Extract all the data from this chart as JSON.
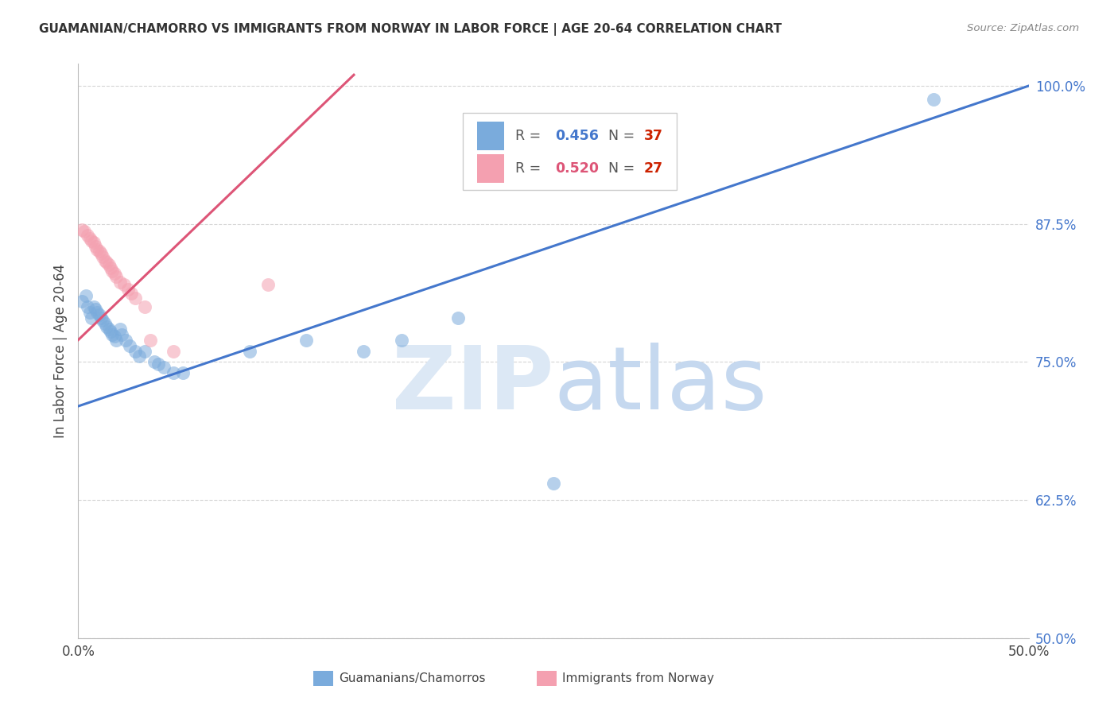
{
  "title": "GUAMANIAN/CHAMORRO VS IMMIGRANTS FROM NORWAY IN LABOR FORCE | AGE 20-64 CORRELATION CHART",
  "source": "Source: ZipAtlas.com",
  "ylabel": "In Labor Force | Age 20-64",
  "xlim": [
    0.0,
    0.5
  ],
  "ylim": [
    0.5,
    1.02
  ],
  "xtick_positions": [
    0.0,
    0.1,
    0.2,
    0.3,
    0.4,
    0.5
  ],
  "xticklabels": [
    "0.0%",
    "",
    "",
    "",
    "",
    "50.0%"
  ],
  "ytick_positions": [
    0.5,
    0.625,
    0.75,
    0.875,
    1.0
  ],
  "yticklabels": [
    "50.0%",
    "62.5%",
    "75.0%",
    "87.5%",
    "100.0%"
  ],
  "blue_R": "0.456",
  "blue_N": "37",
  "pink_R": "0.520",
  "pink_N": "27",
  "blue_dot_color": "#7aabdc",
  "pink_dot_color": "#f4a0b0",
  "blue_line_color": "#4477cc",
  "pink_line_color": "#dd5577",
  "blue_label": "Guamanians/Chamorros",
  "pink_label": "Immigrants from Norway",
  "blue_x": [
    0.002,
    0.004,
    0.005,
    0.006,
    0.007,
    0.008,
    0.009,
    0.01,
    0.011,
    0.012,
    0.013,
    0.014,
    0.015,
    0.016,
    0.017,
    0.018,
    0.019,
    0.02,
    0.022,
    0.023,
    0.025,
    0.027,
    0.03,
    0.032,
    0.035,
    0.04,
    0.042,
    0.045,
    0.05,
    0.055,
    0.09,
    0.12,
    0.15,
    0.17,
    0.2,
    0.25,
    0.45
  ],
  "blue_y": [
    0.805,
    0.81,
    0.8,
    0.795,
    0.79,
    0.8,
    0.798,
    0.795,
    0.793,
    0.79,
    0.788,
    0.785,
    0.782,
    0.78,
    0.778,
    0.775,
    0.773,
    0.77,
    0.78,
    0.775,
    0.77,
    0.765,
    0.76,
    0.755,
    0.76,
    0.75,
    0.748,
    0.745,
    0.74,
    0.74,
    0.76,
    0.77,
    0.76,
    0.77,
    0.79,
    0.64,
    0.988
  ],
  "pink_x": [
    0.002,
    0.003,
    0.005,
    0.006,
    0.007,
    0.008,
    0.009,
    0.01,
    0.011,
    0.012,
    0.013,
    0.014,
    0.015,
    0.016,
    0.017,
    0.018,
    0.019,
    0.02,
    0.022,
    0.024,
    0.026,
    0.028,
    0.03,
    0.035,
    0.038,
    0.05,
    0.1
  ],
  "pink_y": [
    0.87,
    0.868,
    0.865,
    0.862,
    0.86,
    0.858,
    0.855,
    0.852,
    0.85,
    0.848,
    0.845,
    0.842,
    0.84,
    0.838,
    0.835,
    0.832,
    0.83,
    0.827,
    0.822,
    0.82,
    0.816,
    0.812,
    0.808,
    0.8,
    0.77,
    0.76,
    0.82
  ],
  "background_color": "#ffffff",
  "grid_color": "#cccccc",
  "watermark_zip_color": "#dce8f5",
  "watermark_atlas_color": "#c5d8ef"
}
